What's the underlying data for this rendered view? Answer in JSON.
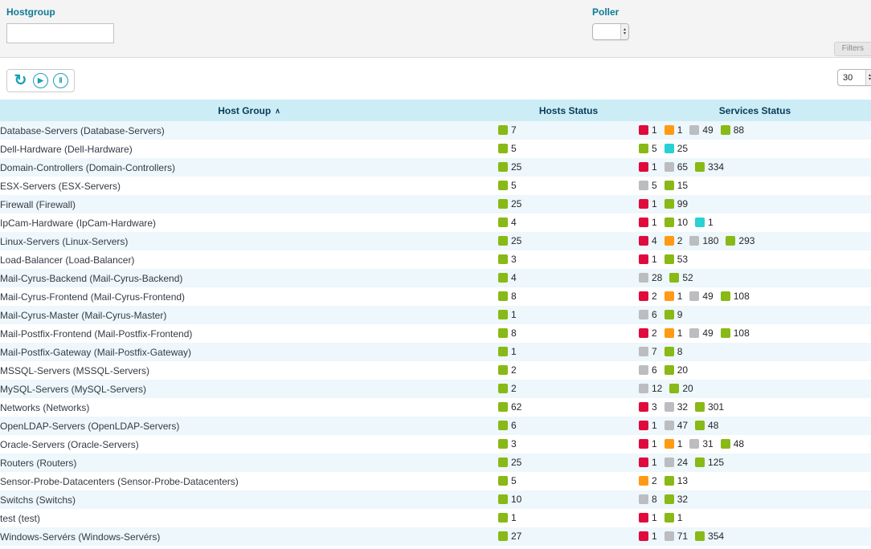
{
  "filters": {
    "hostgroup_label": "Hostgroup",
    "hostgroup_value": "",
    "poller_label": "Poller",
    "poller_value": "",
    "filters_button_label": "Filters"
  },
  "toolbar": {
    "page_size": "30"
  },
  "icons": {
    "refresh": "↻",
    "play": "▶",
    "pause": "Ⅱ",
    "sort_asc": "∧",
    "stepper_up": "▴",
    "stepper_down": "▾"
  },
  "colors": {
    "ok": "#88b917",
    "warning": "#ff9a13",
    "critical": "#e00b3d",
    "unknown": "#bcbdc0",
    "pending": "#2ad1d4"
  },
  "table": {
    "columns": [
      "Host Group",
      "Hosts Status",
      "Services Status"
    ],
    "rows": [
      {
        "name": "Database-Servers (Database-Servers)",
        "hosts": [
          {
            "s": "ok",
            "n": 7
          }
        ],
        "services": [
          {
            "s": "critical",
            "n": 1
          },
          {
            "s": "warning",
            "n": 1
          },
          {
            "s": "unknown",
            "n": 49
          },
          {
            "s": "ok",
            "n": 88
          }
        ]
      },
      {
        "name": "Dell-Hardware (Dell-Hardware)",
        "hosts": [
          {
            "s": "ok",
            "n": 5
          }
        ],
        "services": [
          {
            "s": "ok",
            "n": 5
          },
          {
            "s": "pending",
            "n": 25
          }
        ]
      },
      {
        "name": "Domain-Controllers (Domain-Controllers)",
        "hosts": [
          {
            "s": "ok",
            "n": 25
          }
        ],
        "services": [
          {
            "s": "critical",
            "n": 1
          },
          {
            "s": "unknown",
            "n": 65
          },
          {
            "s": "ok",
            "n": 334
          }
        ]
      },
      {
        "name": "ESX-Servers (ESX-Servers)",
        "hosts": [
          {
            "s": "ok",
            "n": 5
          }
        ],
        "services": [
          {
            "s": "unknown",
            "n": 5
          },
          {
            "s": "ok",
            "n": 15
          }
        ]
      },
      {
        "name": "Firewall (Firewall)",
        "hosts": [
          {
            "s": "ok",
            "n": 25
          }
        ],
        "services": [
          {
            "s": "critical",
            "n": 1
          },
          {
            "s": "ok",
            "n": 99
          }
        ]
      },
      {
        "name": "IpCam-Hardware (IpCam-Hardware)",
        "hosts": [
          {
            "s": "ok",
            "n": 4
          }
        ],
        "services": [
          {
            "s": "critical",
            "n": 1
          },
          {
            "s": "ok",
            "n": 10
          },
          {
            "s": "pending",
            "n": 1
          }
        ]
      },
      {
        "name": "Linux-Servers (Linux-Servers)",
        "hosts": [
          {
            "s": "ok",
            "n": 25
          }
        ],
        "services": [
          {
            "s": "critical",
            "n": 4
          },
          {
            "s": "warning",
            "n": 2
          },
          {
            "s": "unknown",
            "n": 180
          },
          {
            "s": "ok",
            "n": 293
          }
        ]
      },
      {
        "name": "Load-Balancer (Load-Balancer)",
        "hosts": [
          {
            "s": "ok",
            "n": 3
          }
        ],
        "services": [
          {
            "s": "critical",
            "n": 1
          },
          {
            "s": "ok",
            "n": 53
          }
        ]
      },
      {
        "name": "Mail-Cyrus-Backend (Mail-Cyrus-Backend)",
        "hosts": [
          {
            "s": "ok",
            "n": 4
          }
        ],
        "services": [
          {
            "s": "unknown",
            "n": 28
          },
          {
            "s": "ok",
            "n": 52
          }
        ]
      },
      {
        "name": "Mail-Cyrus-Frontend (Mail-Cyrus-Frontend)",
        "hosts": [
          {
            "s": "ok",
            "n": 8
          }
        ],
        "services": [
          {
            "s": "critical",
            "n": 2
          },
          {
            "s": "warning",
            "n": 1
          },
          {
            "s": "unknown",
            "n": 49
          },
          {
            "s": "ok",
            "n": 108
          }
        ]
      },
      {
        "name": "Mail-Cyrus-Master (Mail-Cyrus-Master)",
        "hosts": [
          {
            "s": "ok",
            "n": 1
          }
        ],
        "services": [
          {
            "s": "unknown",
            "n": 6
          },
          {
            "s": "ok",
            "n": 9
          }
        ]
      },
      {
        "name": "Mail-Postfix-Frontend (Mail-Postfix-Frontend)",
        "hosts": [
          {
            "s": "ok",
            "n": 8
          }
        ],
        "services": [
          {
            "s": "critical",
            "n": 2
          },
          {
            "s": "warning",
            "n": 1
          },
          {
            "s": "unknown",
            "n": 49
          },
          {
            "s": "ok",
            "n": 108
          }
        ]
      },
      {
        "name": "Mail-Postfix-Gateway (Mail-Postfix-Gateway)",
        "hosts": [
          {
            "s": "ok",
            "n": 1
          }
        ],
        "services": [
          {
            "s": "unknown",
            "n": 7
          },
          {
            "s": "ok",
            "n": 8
          }
        ]
      },
      {
        "name": "MSSQL-Servers (MSSQL-Servers)",
        "hosts": [
          {
            "s": "ok",
            "n": 2
          }
        ],
        "services": [
          {
            "s": "unknown",
            "n": 6
          },
          {
            "s": "ok",
            "n": 20
          }
        ]
      },
      {
        "name": "MySQL-Servers (MySQL-Servers)",
        "hosts": [
          {
            "s": "ok",
            "n": 2
          }
        ],
        "services": [
          {
            "s": "unknown",
            "n": 12
          },
          {
            "s": "ok",
            "n": 20
          }
        ]
      },
      {
        "name": "Networks (Networks)",
        "hosts": [
          {
            "s": "ok",
            "n": 62
          }
        ],
        "services": [
          {
            "s": "critical",
            "n": 3
          },
          {
            "s": "unknown",
            "n": 32
          },
          {
            "s": "ok",
            "n": 301
          }
        ]
      },
      {
        "name": "OpenLDAP-Servers (OpenLDAP-Servers)",
        "hosts": [
          {
            "s": "ok",
            "n": 6
          }
        ],
        "services": [
          {
            "s": "critical",
            "n": 1
          },
          {
            "s": "unknown",
            "n": 47
          },
          {
            "s": "ok",
            "n": 48
          }
        ]
      },
      {
        "name": "Oracle-Servers (Oracle-Servers)",
        "hosts": [
          {
            "s": "ok",
            "n": 3
          }
        ],
        "services": [
          {
            "s": "critical",
            "n": 1
          },
          {
            "s": "warning",
            "n": 1
          },
          {
            "s": "unknown",
            "n": 31
          },
          {
            "s": "ok",
            "n": 48
          }
        ]
      },
      {
        "name": "Routers (Routers)",
        "hosts": [
          {
            "s": "ok",
            "n": 25
          }
        ],
        "services": [
          {
            "s": "critical",
            "n": 1
          },
          {
            "s": "unknown",
            "n": 24
          },
          {
            "s": "ok",
            "n": 125
          }
        ]
      },
      {
        "name": "Sensor-Probe-Datacenters (Sensor-Probe-Datacenters)",
        "hosts": [
          {
            "s": "ok",
            "n": 5
          }
        ],
        "services": [
          {
            "s": "warning",
            "n": 2
          },
          {
            "s": "ok",
            "n": 13
          }
        ]
      },
      {
        "name": "Switchs (Switchs)",
        "hosts": [
          {
            "s": "ok",
            "n": 10
          }
        ],
        "services": [
          {
            "s": "unknown",
            "n": 8
          },
          {
            "s": "ok",
            "n": 32
          }
        ]
      },
      {
        "name": "test (test)",
        "hosts": [
          {
            "s": "ok",
            "n": 1
          }
        ],
        "services": [
          {
            "s": "critical",
            "n": 1
          },
          {
            "s": "ok",
            "n": 1
          }
        ]
      },
      {
        "name": "Windows-Servérs (Windows-Servérs)",
        "hosts": [
          {
            "s": "ok",
            "n": 27
          }
        ],
        "services": [
          {
            "s": "critical",
            "n": 1
          },
          {
            "s": "unknown",
            "n": 71
          },
          {
            "s": "ok",
            "n": 354
          }
        ]
      }
    ]
  }
}
